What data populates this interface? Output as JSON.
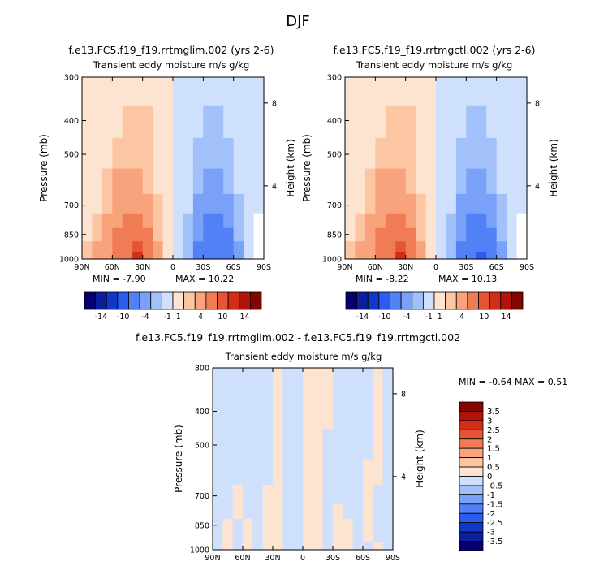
{
  "figure": {
    "title": "DJF",
    "diff_title": "f.e13.FC5.f19_f19.rrtmglim.002 - f.e13.FC5.f19_f19.rrtmgctl.002"
  },
  "colors": {
    "palette": [
      "#050070",
      "#0a1e9e",
      "#0f38c9",
      "#2c5bf0",
      "#5280f5",
      "#7aa1f8",
      "#a2c0fa",
      "#cfe0fc",
      "#fde4d0",
      "#fcc6a3",
      "#f9a37c",
      "#f07c55",
      "#e55535",
      "#d22d16",
      "#b0140a",
      "#820500"
    ],
    "axis": "#000000",
    "background": "#ffffff"
  },
  "colorbar_top": {
    "labels": [
      "-14",
      "-10",
      "-4",
      "-1",
      "1",
      "4",
      "10",
      "14"
    ]
  },
  "colorbar_diff": {
    "labels": [
      "3.5",
      "3",
      "2.5",
      "2",
      "1.5",
      "1",
      "0.5",
      "0",
      "-0.5",
      "-1",
      "-1.5",
      "-2",
      "-2.5",
      "-3",
      "-3.5"
    ]
  },
  "chart_data": [
    {
      "type": "heatmap",
      "title": "f.e13.FC5.f19_f19.rrtmglim.002 (yrs 2-6)",
      "subtitle": "Transient eddy moisture m/s g/kg",
      "xlabel": "",
      "ylabel": "Pressure (mb)",
      "ylabel_right": "Height (km)",
      "x_ticks": [
        "90N",
        "60N",
        "30N",
        "0",
        "30S",
        "60S",
        "90S"
      ],
      "y_ticks": [
        "300",
        "400",
        "500",
        "700",
        "850",
        "1000"
      ],
      "y_right_ticks": [
        "8",
        "4"
      ],
      "xlim": [
        90,
        -90
      ],
      "ylim": [
        1000,
        300
      ],
      "y_scale": "log",
      "min_label": "MIN = -7.90",
      "max_label": "MAX = 10.22",
      "min": -7.9,
      "max": 10.22,
      "levels": [
        -14,
        -12,
        -10,
        -8,
        -4,
        -2,
        -1,
        0,
        1,
        2,
        4,
        8,
        10,
        12,
        14
      ],
      "cells": {
        "lat": [
          85,
          75,
          65,
          55,
          45,
          35,
          25,
          15,
          5,
          -5,
          -15,
          -25,
          -35,
          -45,
          -55,
          -65,
          -75,
          -85
        ],
        "p": [
          975,
          925,
          850,
          775,
          700,
          600,
          500,
          400,
          325
        ],
        "values": [
          [
            1.5,
            2.5,
            3.5,
            5,
            7.9,
            10.22,
            6,
            2.5,
            0.6,
            -0.6,
            -2,
            -4.5,
            -6.5,
            -7.9,
            -6.5,
            -3,
            -0.5,
            null
          ],
          [
            1.2,
            2,
            3,
            5,
            7.5,
            9,
            5,
            2,
            0.5,
            -0.5,
            -2,
            -4.5,
            -6.5,
            -7.5,
            -6,
            -2.5,
            -0.5,
            null
          ],
          [
            0.8,
            1.5,
            2.5,
            4.5,
            6,
            7,
            4,
            1.5,
            0.4,
            -0.4,
            -1.5,
            -4,
            -5.5,
            -6,
            -4.5,
            -2,
            -0.4,
            null
          ],
          [
            0.5,
            1,
            2,
            3.5,
            4.5,
            5,
            3,
            1.2,
            0.3,
            -0.3,
            -1.2,
            -3,
            -4.5,
            -4.5,
            -3.5,
            -1.5,
            -0.3,
            null
          ],
          [
            0.4,
            0.9,
            1.5,
            2.5,
            3.5,
            3.8,
            2.5,
            1,
            0.3,
            -0.3,
            -1,
            -2.5,
            -3.5,
            -3.8,
            -3,
            -1.2,
            -0.3,
            -0.2
          ],
          [
            0.3,
            0.6,
            1.2,
            2,
            2.5,
            2.6,
            1.8,
            0.8,
            0.2,
            -0.2,
            -0.8,
            -1.8,
            -2.5,
            -2.5,
            -2,
            -0.8,
            -0.2,
            -0.1
          ],
          [
            0.2,
            0.4,
            0.8,
            1.3,
            1.8,
            1.8,
            1.3,
            0.6,
            0.2,
            -0.2,
            -0.6,
            -1.2,
            -1.6,
            -1.6,
            -1.2,
            -0.5,
            -0.2,
            -0.1
          ],
          [
            0.1,
            0.2,
            0.5,
            0.8,
            1.1,
            1.2,
            1,
            0.4,
            0.1,
            -0.1,
            -0.4,
            -0.9,
            -1.1,
            -1.1,
            -0.7,
            -0.3,
            -0.1,
            -0.1
          ],
          [
            0.1,
            0.1,
            0.2,
            0.4,
            0.5,
            0.6,
            0.5,
            0.2,
            0.1,
            -0.1,
            -0.2,
            -0.4,
            -0.5,
            -0.5,
            -0.3,
            -0.2,
            -0.1,
            -0.1
          ]
        ]
      }
    },
    {
      "type": "heatmap",
      "title": "f.e13.FC5.f19_f19.rrtmgctl.002 (yrs 2-6)",
      "subtitle": "Transient eddy moisture m/s g/kg",
      "xlabel": "",
      "ylabel": "Pressure (mb)",
      "ylabel_right": "Height (km)",
      "x_ticks": [
        "90N",
        "60N",
        "30N",
        "0",
        "30S",
        "60S",
        "90S"
      ],
      "y_ticks": [
        "300",
        "400",
        "500",
        "700",
        "850",
        "1000"
      ],
      "y_right_ticks": [
        "8",
        "4"
      ],
      "xlim": [
        90,
        -90
      ],
      "ylim": [
        1000,
        300
      ],
      "y_scale": "log",
      "min_label": "MIN = -8.22",
      "max_label": "MAX = 10.13",
      "min": -8.22,
      "max": 10.13,
      "levels": [
        -14,
        -12,
        -10,
        -8,
        -4,
        -2,
        -1,
        0,
        1,
        2,
        4,
        8,
        10,
        12,
        14
      ],
      "cells": {
        "lat": [
          85,
          75,
          65,
          55,
          45,
          35,
          25,
          15,
          5,
          -5,
          -15,
          -25,
          -35,
          -45,
          -55,
          -65,
          -75,
          -85
        ],
        "p": [
          975,
          925,
          850,
          775,
          700,
          600,
          500,
          400,
          325
        ],
        "values": [
          [
            1.5,
            2.5,
            3.5,
            5,
            7.8,
            10.13,
            6,
            2.5,
            0.6,
            -0.6,
            -2,
            -4.5,
            -6.8,
            -8.22,
            -6.8,
            -3,
            -0.5,
            null
          ],
          [
            1.2,
            2,
            3,
            5,
            7.4,
            9,
            5,
            2,
            0.5,
            -0.5,
            -2,
            -4.5,
            -6.8,
            -7.8,
            -6.2,
            -2.5,
            -0.5,
            null
          ],
          [
            0.8,
            1.5,
            2.5,
            4.5,
            6,
            7,
            4,
            1.5,
            0.4,
            -0.4,
            -1.5,
            -4,
            -5.8,
            -6.2,
            -4.6,
            -2,
            -0.4,
            null
          ],
          [
            0.5,
            1,
            2,
            3.5,
            4.5,
            5,
            3,
            1.2,
            0.3,
            -0.3,
            -1.2,
            -3,
            -4.6,
            -4.6,
            -3.5,
            -1.5,
            -0.3,
            null
          ],
          [
            0.4,
            0.9,
            1.5,
            2.5,
            3.5,
            3.8,
            2.5,
            1,
            0.3,
            -0.3,
            -1,
            -2.5,
            -3.6,
            -3.9,
            -3,
            -1.2,
            -0.3,
            -0.2
          ],
          [
            0.3,
            0.6,
            1.2,
            2,
            2.5,
            2.6,
            1.8,
            0.8,
            0.2,
            -0.2,
            -0.8,
            -1.8,
            -2.6,
            -2.6,
            -2,
            -0.8,
            -0.2,
            -0.1
          ],
          [
            0.2,
            0.4,
            0.8,
            1.3,
            1.8,
            1.8,
            1.3,
            0.6,
            0.2,
            -0.2,
            -0.6,
            -1.2,
            -1.7,
            -1.7,
            -1.2,
            -0.5,
            -0.2,
            -0.1
          ],
          [
            0.1,
            0.2,
            0.5,
            0.8,
            1.1,
            1.2,
            1,
            0.4,
            0.1,
            -0.1,
            -0.4,
            -0.9,
            -1.2,
            -1.2,
            -0.8,
            -0.3,
            -0.1,
            -0.1
          ],
          [
            0.1,
            0.1,
            0.2,
            0.4,
            0.5,
            0.6,
            0.5,
            0.2,
            0.1,
            -0.1,
            -0.2,
            -0.4,
            -0.5,
            -0.5,
            -0.3,
            -0.2,
            -0.1,
            -0.1
          ]
        ]
      }
    },
    {
      "type": "heatmap",
      "title": "",
      "subtitle": "Transient eddy moisture m/s g/kg",
      "xlabel": "",
      "ylabel": "Pressure (mb)",
      "ylabel_right": "Height (km)",
      "x_ticks": [
        "90N",
        "60N",
        "30N",
        "0",
        "30S",
        "60S",
        "90S"
      ],
      "y_ticks": [
        "300",
        "400",
        "500",
        "700",
        "850",
        "1000"
      ],
      "y_right_ticks": [
        "8",
        "4"
      ],
      "xlim": [
        90,
        -90
      ],
      "ylim": [
        1000,
        300
      ],
      "y_scale": "log",
      "min_label": "MIN = -0.64",
      "max_label": "MAX = 0.51",
      "min": -0.64,
      "max": 0.51,
      "levels": [
        -3.5,
        -3,
        -2.5,
        -2,
        -1.5,
        -1,
        -0.5,
        0,
        0.5,
        1,
        1.5,
        2,
        2.5,
        3,
        3.5
      ],
      "cells": {
        "lat": [
          85,
          75,
          65,
          55,
          45,
          35,
          25,
          15,
          5,
          -5,
          -15,
          -25,
          -35,
          -45,
          -55,
          -65,
          -75,
          -85
        ],
        "p": [
          975,
          925,
          850,
          775,
          700,
          600,
          500,
          400,
          325
        ],
        "values": [
          [
            -0.3,
            0.1,
            -0.1,
            0.2,
            -0.2,
            0.1,
            0.3,
            -0.1,
            -0.2,
            0.2,
            0.1,
            -0.2,
            0.2,
            0.3,
            -0.2,
            -0.1,
            0.2,
            -0.1
          ],
          [
            -0.1,
            0.2,
            -0.2,
            0.1,
            -0.1,
            0.2,
            0.2,
            -0.2,
            -0.1,
            0.1,
            0.2,
            -0.1,
            0.1,
            0.2,
            -0.1,
            0.1,
            -0.2,
            -0.1
          ],
          [
            -0.1,
            0.1,
            -0.2,
            0.2,
            -0.1,
            0.1,
            0.3,
            -0.1,
            -0.2,
            0.2,
            0.1,
            -0.2,
            0.2,
            0.1,
            -0.2,
            0.2,
            -0.1,
            -0.1
          ],
          [
            -0.1,
            -0.1,
            0.1,
            -0.2,
            -0.1,
            0.2,
            0.2,
            -0.1,
            -0.1,
            0.1,
            0.2,
            -0.1,
            0.1,
            -0.1,
            -0.2,
            0.1,
            -0.1,
            -0.1
          ],
          [
            -0.1,
            -0.2,
            0.2,
            -0.1,
            -0.2,
            0.1,
            0.2,
            -0.2,
            -0.1,
            0.2,
            0.1,
            -0.2,
            -0.1,
            -0.1,
            -0.1,
            0.2,
            -0.1,
            -0.1
          ],
          [
            -0.1,
            -0.1,
            -0.1,
            -0.1,
            -0.1,
            -0.1,
            0.2,
            -0.1,
            -0.2,
            0.1,
            0.2,
            -0.1,
            -0.1,
            -0.1,
            -0.1,
            0.1,
            0.1,
            -0.1
          ],
          [
            -0.1,
            -0.1,
            -0.1,
            -0.1,
            -0.1,
            -0.1,
            0.1,
            -0.1,
            -0.1,
            0.2,
            0.1,
            -0.1,
            -0.1,
            -0.1,
            -0.1,
            -0.1,
            0.1,
            -0.1
          ],
          [
            -0.1,
            -0.1,
            -0.1,
            -0.1,
            -0.1,
            -0.1,
            0.1,
            -0.2,
            -0.1,
            0.1,
            0.2,
            0.1,
            -0.1,
            -0.1,
            -0.1,
            -0.1,
            0.1,
            -0.1
          ],
          [
            -0.1,
            -0.1,
            -0.1,
            -0.1,
            -0.1,
            -0.1,
            0.1,
            -0.1,
            -0.1,
            0.1,
            0.1,
            0.1,
            -0.1,
            -0.1,
            -0.1,
            -0.1,
            0.2,
            -0.1
          ]
        ]
      }
    }
  ]
}
